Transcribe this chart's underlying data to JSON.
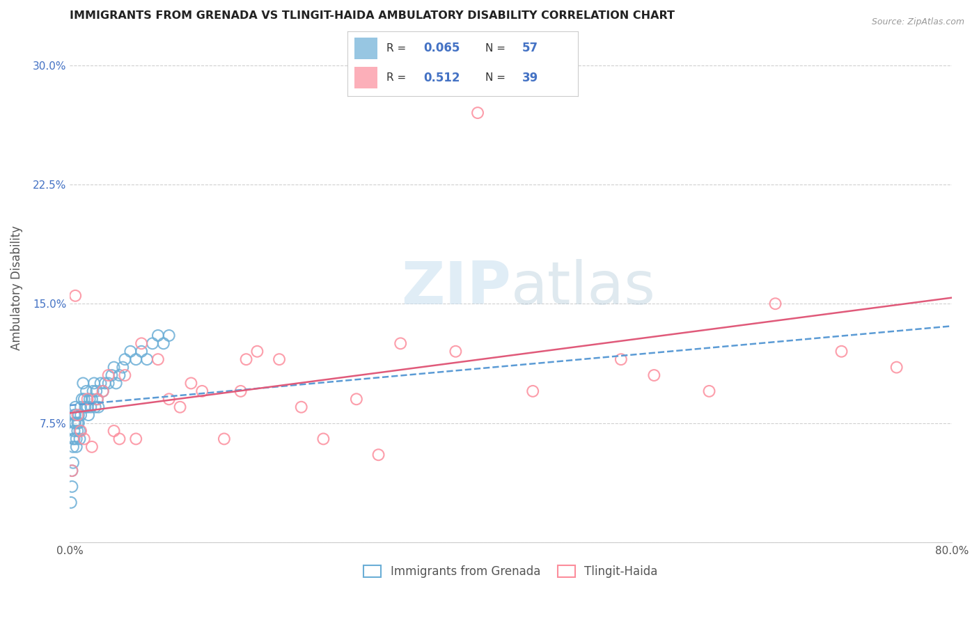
{
  "title": "IMMIGRANTS FROM GRENADA VS TLINGIT-HAIDA AMBULATORY DISABILITY CORRELATION CHART",
  "source": "Source: ZipAtlas.com",
  "ylabel": "Ambulatory Disability",
  "legend_label1": "Immigrants from Grenada",
  "legend_label2": "Tlingit-Haida",
  "r1": 0.065,
  "n1": 57,
  "r2": 0.512,
  "n2": 39,
  "color1": "#6baed6",
  "color2": "#fc8d9c",
  "trendline1_color": "#5b9bd5",
  "trendline2_color": "#e05a7a",
  "xlim": [
    0.0,
    0.8
  ],
  "ylim": [
    0.0,
    0.32
  ],
  "xticks": [
    0.0,
    0.1,
    0.2,
    0.3,
    0.4,
    0.5,
    0.6,
    0.7,
    0.8
  ],
  "yticks": [
    0.0,
    0.075,
    0.15,
    0.225,
    0.3
  ],
  "yticklabels": [
    "",
    "7.5%",
    "15.0%",
    "22.5%",
    "30.0%"
  ],
  "scatter1_x": [
    0.001,
    0.002,
    0.002,
    0.003,
    0.003,
    0.003,
    0.004,
    0.004,
    0.004,
    0.004,
    0.005,
    0.005,
    0.005,
    0.006,
    0.006,
    0.007,
    0.007,
    0.008,
    0.008,
    0.009,
    0.009,
    0.01,
    0.01,
    0.011,
    0.012,
    0.013,
    0.014,
    0.015,
    0.016,
    0.017,
    0.018,
    0.019,
    0.02,
    0.021,
    0.022,
    0.023,
    0.024,
    0.025,
    0.026,
    0.028,
    0.03,
    0.032,
    0.035,
    0.038,
    0.04,
    0.042,
    0.045,
    0.048,
    0.05,
    0.055,
    0.06,
    0.065,
    0.07,
    0.075,
    0.08,
    0.085,
    0.09
  ],
  "scatter1_y": [
    0.025,
    0.035,
    0.045,
    0.05,
    0.06,
    0.065,
    0.065,
    0.07,
    0.075,
    0.08,
    0.075,
    0.08,
    0.085,
    0.06,
    0.065,
    0.07,
    0.075,
    0.075,
    0.08,
    0.07,
    0.065,
    0.08,
    0.085,
    0.09,
    0.1,
    0.09,
    0.085,
    0.095,
    0.085,
    0.08,
    0.09,
    0.085,
    0.09,
    0.095,
    0.1,
    0.085,
    0.095,
    0.09,
    0.085,
    0.1,
    0.095,
    0.1,
    0.1,
    0.105,
    0.11,
    0.1,
    0.105,
    0.11,
    0.115,
    0.12,
    0.115,
    0.12,
    0.115,
    0.125,
    0.13,
    0.125,
    0.13
  ],
  "scatter2_x": [
    0.002,
    0.005,
    0.007,
    0.01,
    0.013,
    0.016,
    0.02,
    0.025,
    0.03,
    0.035,
    0.04,
    0.045,
    0.05,
    0.06,
    0.065,
    0.08,
    0.09,
    0.1,
    0.11,
    0.12,
    0.14,
    0.155,
    0.16,
    0.17,
    0.19,
    0.21,
    0.23,
    0.26,
    0.28,
    0.3,
    0.35,
    0.37,
    0.42,
    0.5,
    0.53,
    0.58,
    0.64,
    0.7,
    0.75
  ],
  "scatter2_y": [
    0.045,
    0.155,
    0.08,
    0.07,
    0.065,
    0.09,
    0.06,
    0.09,
    0.095,
    0.105,
    0.07,
    0.065,
    0.105,
    0.065,
    0.125,
    0.115,
    0.09,
    0.085,
    0.1,
    0.095,
    0.065,
    0.095,
    0.115,
    0.12,
    0.115,
    0.085,
    0.065,
    0.09,
    0.055,
    0.125,
    0.12,
    0.27,
    0.095,
    0.115,
    0.105,
    0.095,
    0.15,
    0.12,
    0.11
  ],
  "watermark_zip": "ZIP",
  "watermark_atlas": "atlas",
  "background_color": "#ffffff",
  "grid_color": "#d0d0d0"
}
